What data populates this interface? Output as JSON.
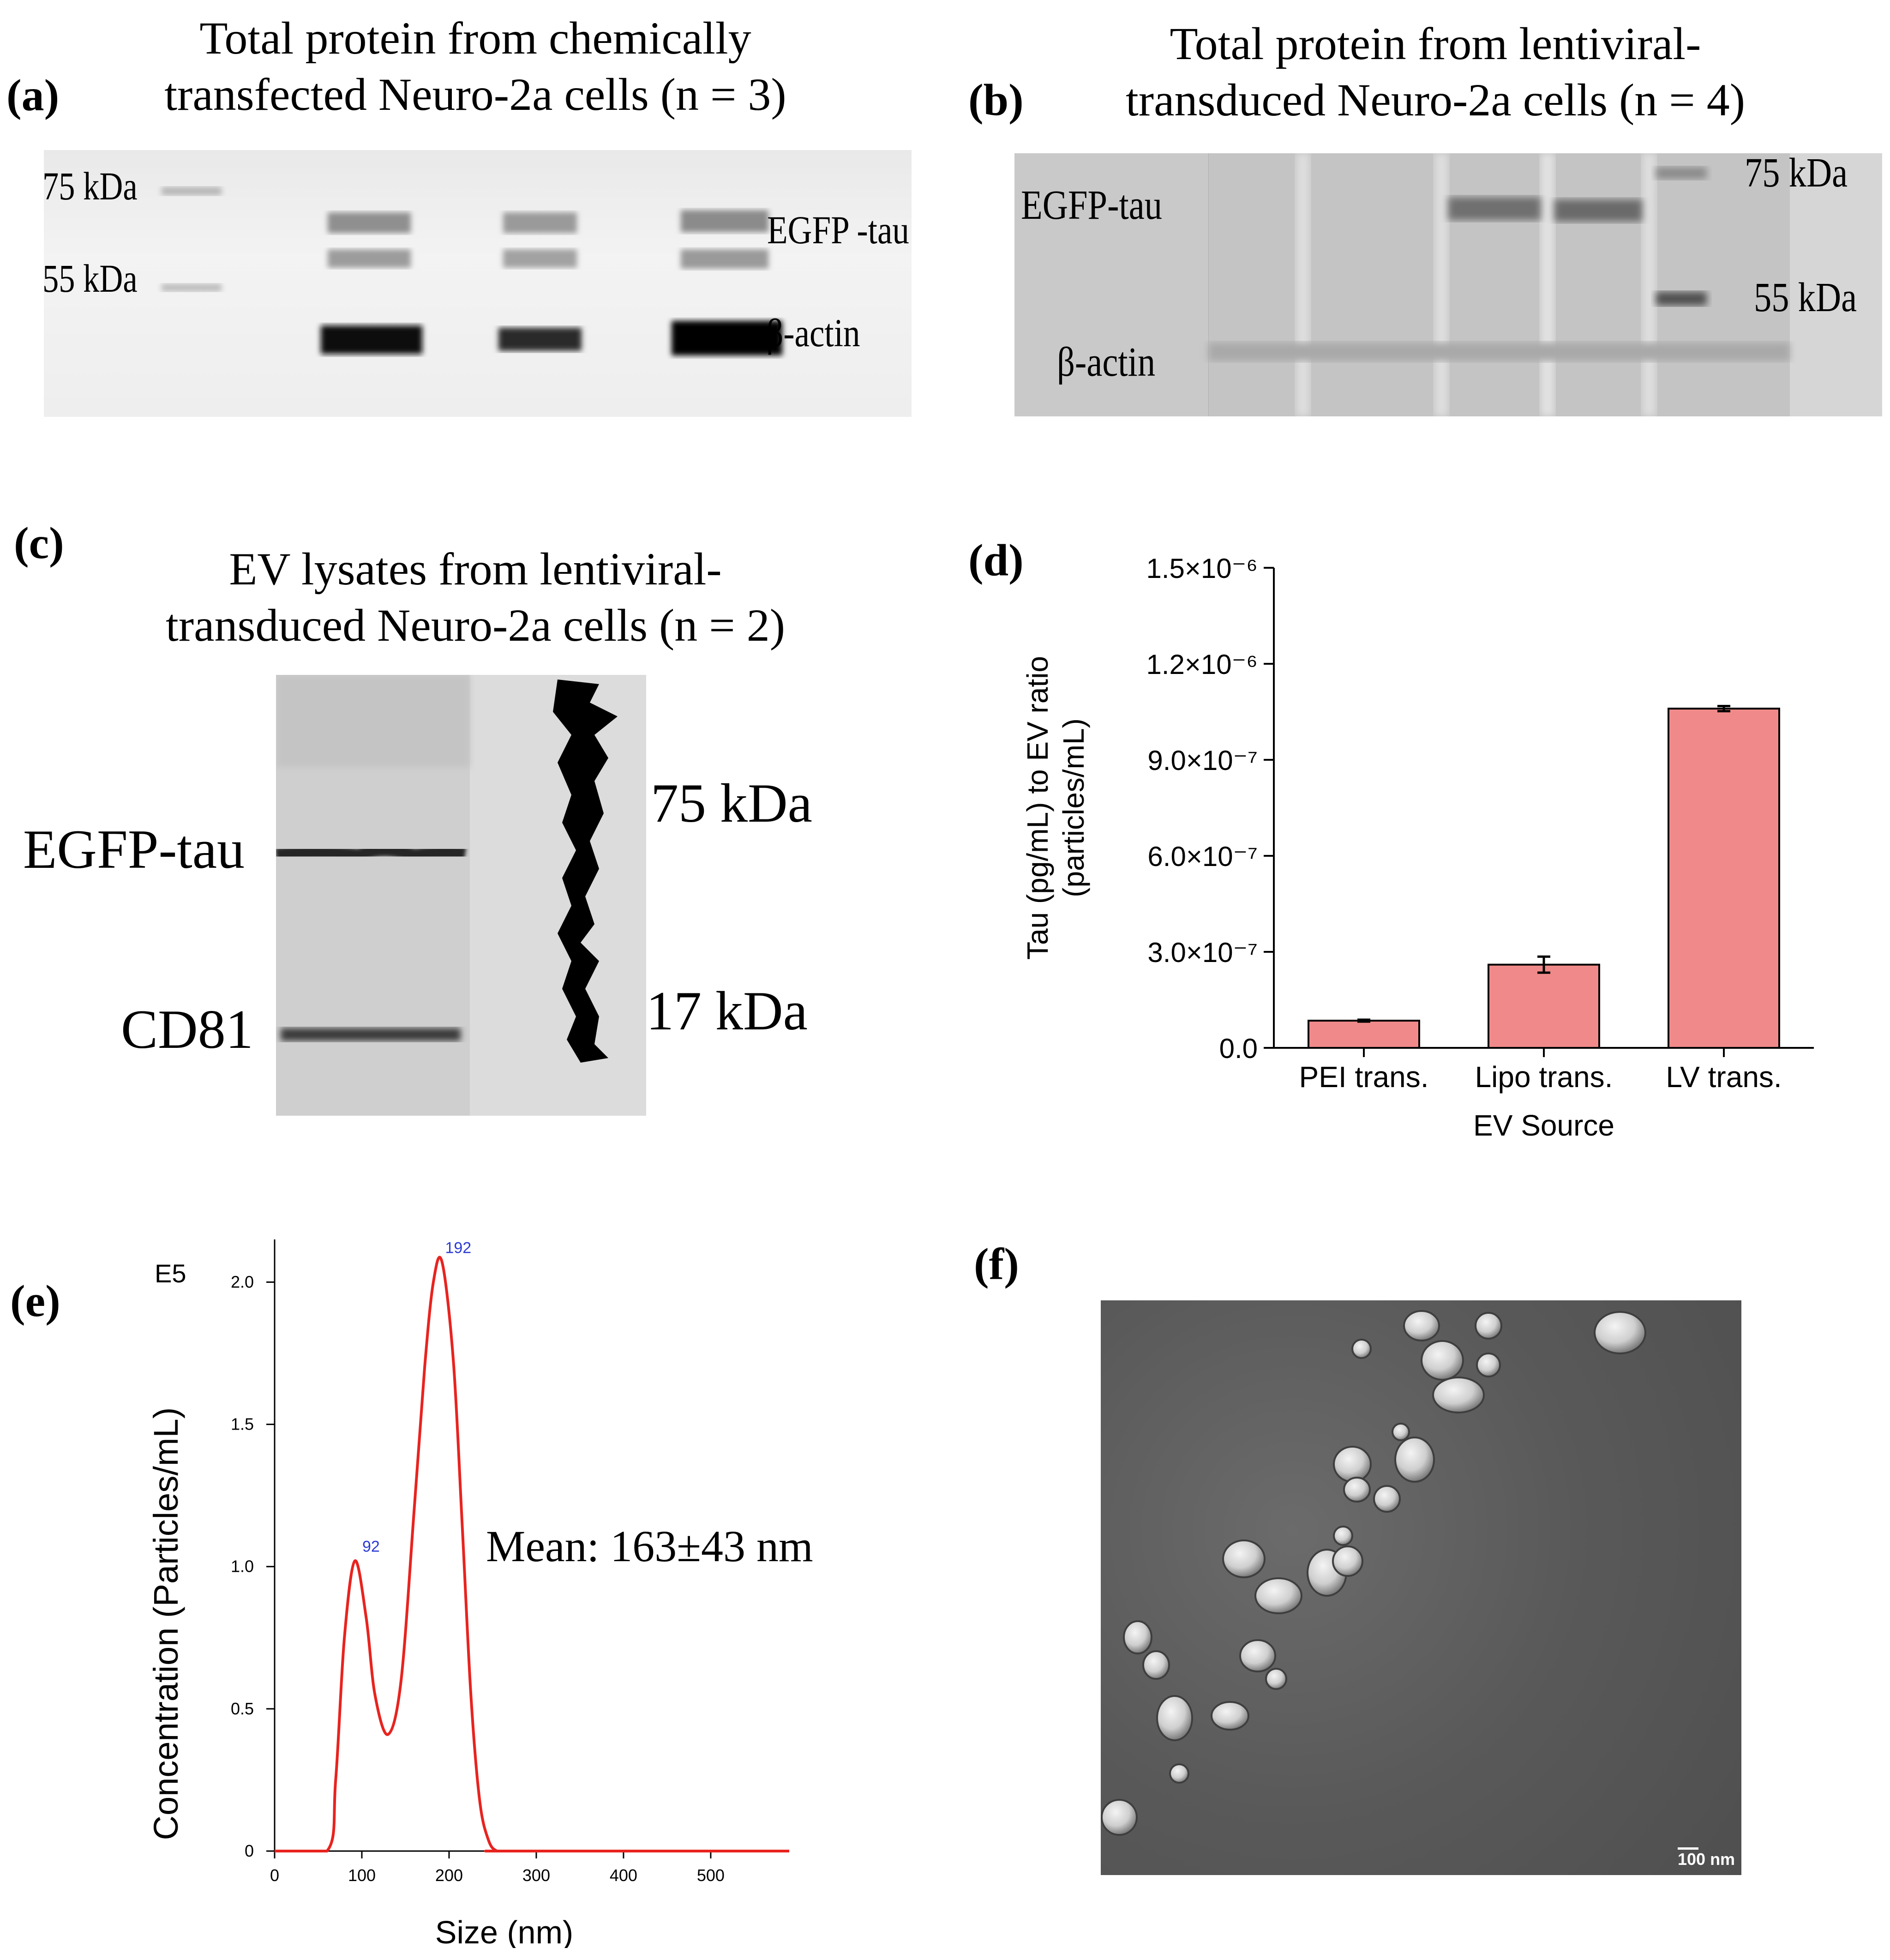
{
  "panel_a": {
    "label": "(a)",
    "title_line1": "Total protein from chemically",
    "title_line2": "transfected Neuro-2a cells (n = 3)",
    "marker_75": "75 kDa",
    "marker_55": "55 kDa",
    "band_top": "EGFP -tau",
    "band_bottom": "β-actin"
  },
  "panel_b": {
    "label": "(b)",
    "title_line1": "Total protein from lentiviral-",
    "title_line2": "transduced Neuro-2a cells (n = 4)",
    "band_top": "EGFP-tau",
    "band_bottom": "β-actin",
    "marker_75": "75 kDa",
    "marker_55": "55 kDa"
  },
  "panel_c": {
    "label": "(c)",
    "title_line1": "EV lysates from lentiviral-",
    "title_line2": "transduced Neuro-2a cells (n = 2)",
    "band_top": "EGFP-tau",
    "band_bottom": "CD81",
    "marker_75": "75 kDa",
    "marker_17": "17 kDa"
  },
  "panel_d": {
    "label": "(d)",
    "ylabel_line1": "Tau (pg/mL) to EV ratio",
    "ylabel_line2": "(particles/mL)",
    "xlabel": "EV Source",
    "ytick_labels": [
      "0.0",
      "3.0×10⁻⁷",
      "6.0×10⁻⁷",
      "9.0×10⁻⁷",
      "1.2×10⁻⁶",
      "1.5×10⁻⁶"
    ],
    "bar_color": "#f08a8a"
  },
  "panel_e": {
    "label": "(e)",
    "exponent_label": "E5",
    "ylabel": "Concentration (Particles/mL)",
    "xlabel": "Size (nm)",
    "annotation": "Mean: 163±43 nm",
    "peak_label_1": "92",
    "peak_label_2": "192",
    "line_color": "#e8231f",
    "peak_label_color": "#2b3bd4"
  },
  "panel_f": {
    "label": "(f)",
    "scale_bar_label": "100 nm"
  },
  "chart_data": [
    {
      "type": "bar",
      "categories": [
        "PEI trans.",
        "Lipo trans.",
        "LV trans."
      ],
      "values": [
        8.5e-08,
        2.6e-07,
        1.06e-06
      ],
      "errors": [
        3e-09,
        2.5e-08,
        8e-09
      ],
      "xlabel": "EV Source",
      "ylabel": "Tau (pg/mL) to EV ratio (particles/mL)",
      "ylim": [
        0,
        1.5e-06
      ],
      "yticks": [
        0,
        3e-07,
        6e-07,
        9e-07,
        1.2e-06,
        1.5e-06
      ],
      "grid": false
    },
    {
      "type": "line",
      "x": [
        0,
        60,
        70,
        80,
        92,
        105,
        115,
        130,
        145,
        160,
        172,
        182,
        192,
        205,
        215,
        225,
        235,
        245,
        255,
        270,
        590
      ],
      "y": [
        0,
        0,
        0.25,
        0.75,
        1.02,
        0.82,
        0.55,
        0.41,
        0.6,
        1.2,
        1.7,
        2.0,
        2.07,
        1.72,
        1.15,
        0.55,
        0.18,
        0.04,
        0,
        0,
        0
      ],
      "xlabel": "Size (nm)",
      "ylabel": "Concentration (Particles/mL)",
      "xticks": [
        0,
        100,
        200,
        300,
        400,
        500
      ],
      "yticks": [
        0,
        0.5,
        1.0,
        1.5,
        2.0
      ],
      "ylim": [
        0,
        2.15
      ],
      "xlim": [
        0,
        590
      ],
      "y_unit_multiplier": "E5",
      "peaks": [
        {
          "x": 92,
          "label": "92"
        },
        {
          "x": 192,
          "label": "192"
        }
      ]
    }
  ]
}
